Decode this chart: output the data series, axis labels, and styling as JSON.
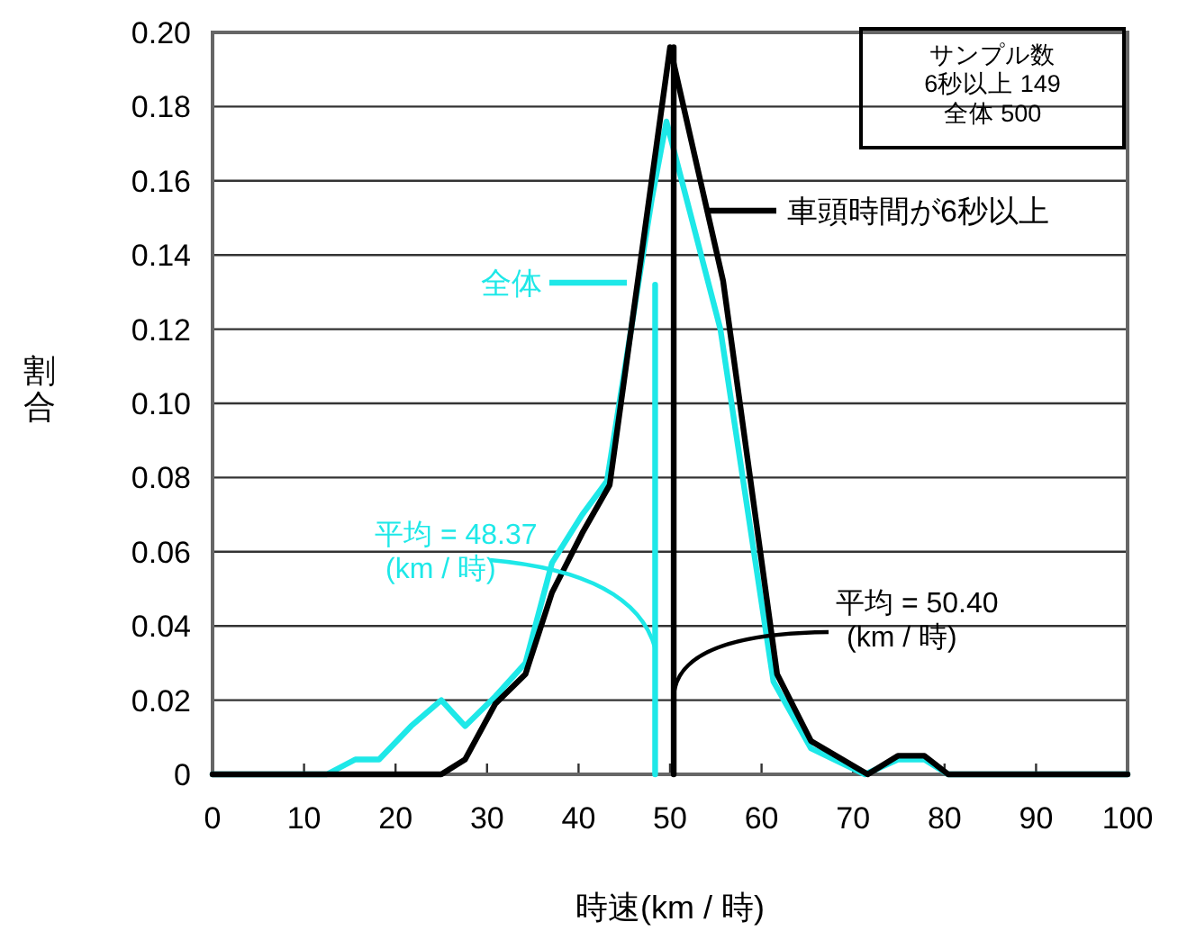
{
  "chart_data": {
    "type": "line",
    "xlabel": "時速(km / 時)",
    "ylabel": "割合",
    "xlim": [
      0,
      100
    ],
    "ylim": [
      0,
      0.2
    ],
    "xticks": [
      0,
      10,
      20,
      30,
      40,
      50,
      60,
      70,
      80,
      90,
      100
    ],
    "yticks": [
      0,
      {
        "value": 0.02,
        "label": "0.02"
      },
      {
        "value": 0.04,
        "label": "0.04"
      },
      {
        "value": 0.06,
        "label": "0.06"
      },
      {
        "value": 0.08,
        "label": "0.08"
      },
      {
        "value": 0.1,
        "label": "0.10"
      },
      {
        "value": 0.12,
        "label": "0.12"
      },
      {
        "value": 0.14,
        "label": "0.14"
      },
      {
        "value": 0.16,
        "label": "0.16"
      },
      {
        "value": 0.18,
        "label": "0.18"
      },
      {
        "value": 0.2,
        "label": "0.20"
      }
    ],
    "grid": "y",
    "series": [
      {
        "name": "全体",
        "color": "#1ee8e8",
        "x": [
          0,
          12.5,
          15.6,
          18.2,
          21.7,
          25,
          27.6,
          30.9,
          34.2,
          37.1,
          40.4,
          43.1,
          48,
          49.6,
          55.5,
          61.3,
          65.4,
          71.3,
          74.9,
          77.8,
          80.4,
          100
        ],
        "values": [
          0,
          0,
          0.004,
          0.004,
          0.013,
          0.02,
          0.013,
          0.021,
          0.03,
          0.057,
          0.07,
          0.079,
          0.155,
          0.176,
          0.12,
          0.025,
          0.007,
          0,
          0.004,
          0.004,
          0,
          0
        ]
      },
      {
        "name": "車頭時間が6秒以上",
        "color": "#000000",
        "x": [
          0,
          25,
          27.6,
          30.9,
          34.2,
          37.1,
          40.4,
          43.4,
          50,
          55.8,
          61.7,
          65.4,
          71.6,
          74.9,
          77.8,
          80.4,
          100
        ],
        "values": [
          0,
          0,
          0.004,
          0.019,
          0.027,
          0.049,
          0.065,
          0.078,
          0.196,
          0.133,
          0.027,
          0.009,
          0,
          0.005,
          0.005,
          0,
          0
        ]
      },
      {
        "color": "#1ee8e8",
        "x": [
          48.37,
          48.37
        ],
        "values": [
          0,
          0.132
        ]
      },
      {
        "color": "#000000",
        "x": [
          50.4,
          50.4
        ],
        "values": [
          0,
          0.196
        ]
      }
    ],
    "annotations": [
      {
        "text": "平均 = 48.37\n(km / 時)",
        "x": 48.37,
        "y": 0.034
      },
      {
        "text": "平均 = 50.40\n(km / 時)",
        "x": 50.4,
        "y": 0.021
      },
      "サンプル数\n6秒以上  149\n全体    500"
    ]
  }
}
